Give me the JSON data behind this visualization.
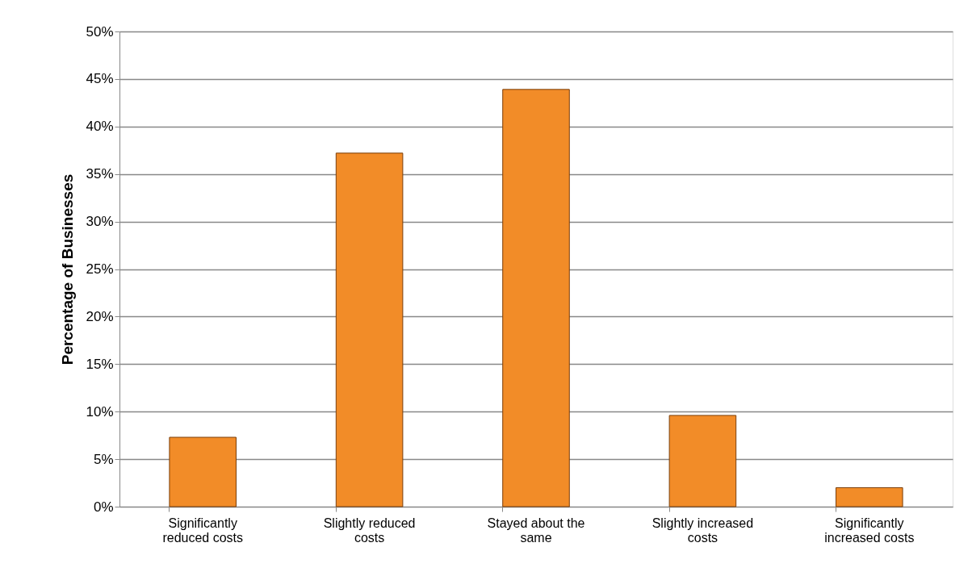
{
  "chart_data": {
    "type": "bar",
    "ylabel": "Percentage of Businesses",
    "categories": [
      "Significantly reduced costs",
      "Slightly reduced costs",
      "Stayed about the same",
      "Slightly increased costs",
      "Significantly increased costs"
    ],
    "values": [
      7.3,
      37.2,
      43.9,
      9.6,
      2.0
    ],
    "color": "#f28c28",
    "ylim": [
      0,
      50
    ],
    "yticks": [
      {
        "value": 0,
        "label": "0%"
      },
      {
        "value": 5,
        "label": "5%"
      },
      {
        "value": 10,
        "label": "10%"
      },
      {
        "value": 15,
        "label": "15%"
      },
      {
        "value": 20,
        "label": "20%"
      },
      {
        "value": 25,
        "label": "25%"
      },
      {
        "value": 30,
        "label": "30%"
      },
      {
        "value": 35,
        "label": "35%"
      },
      {
        "value": 40,
        "label": "40%"
      },
      {
        "value": 45,
        "label": "45%"
      },
      {
        "value": 50,
        "label": "50%"
      }
    ],
    "grid": "y"
  }
}
